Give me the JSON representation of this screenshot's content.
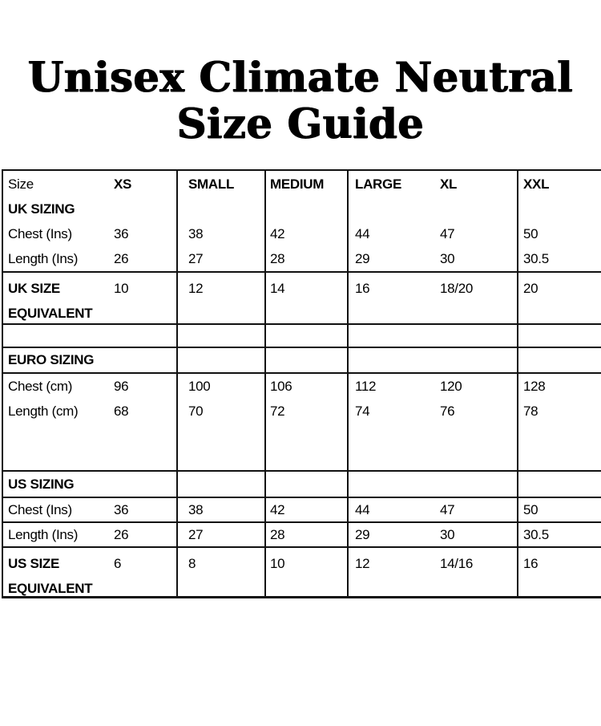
{
  "title": {
    "line1": "Unisex Climate Neutral",
    "line2": "Size Guide"
  },
  "colors": {
    "text": "#000000",
    "border": "#111111",
    "background": "#ffffff"
  },
  "table": {
    "header": {
      "label": "Size",
      "xs": "XS",
      "small": "SMALL",
      "medium": "MEDIUM",
      "large": "LARGE",
      "xl": "XL",
      "xxl": "XXL"
    },
    "uk": {
      "section": "UK SIZING",
      "chest": {
        "label": "Chest (Ins)",
        "values": [
          "36",
          "38",
          "42",
          "44",
          "47",
          "50"
        ]
      },
      "length": {
        "label": "Length (Ins)",
        "values": [
          "26",
          "27",
          "28",
          "29",
          "30",
          "30.5"
        ]
      },
      "equiv": {
        "line1": "UK SIZE",
        "line2": "EQUIVALENT",
        "values": [
          "10",
          "12",
          "14",
          "16",
          "18/20",
          "20"
        ]
      }
    },
    "euro": {
      "section": "EURO SIZING",
      "chest": {
        "label": "Chest (cm)",
        "values": [
          "96",
          "100",
          "106",
          "112",
          "120",
          "128"
        ]
      },
      "length": {
        "label": "Length (cm)",
        "values": [
          "68",
          "70",
          "72",
          "74",
          "76",
          "78"
        ]
      }
    },
    "us": {
      "section": "US SIZING",
      "chest": {
        "label": "Chest (Ins)",
        "values": [
          "36",
          "38",
          "42",
          "44",
          "47",
          "50"
        ]
      },
      "length": {
        "label": "Length (Ins)",
        "values": [
          "26",
          "27",
          "28",
          "29",
          "30",
          "30.5"
        ]
      },
      "equiv": {
        "line1": "US SIZE",
        "line2": "EQUIVALENT",
        "values": [
          "6",
          "8",
          "10",
          "12",
          "14/16",
          "16"
        ]
      }
    }
  }
}
